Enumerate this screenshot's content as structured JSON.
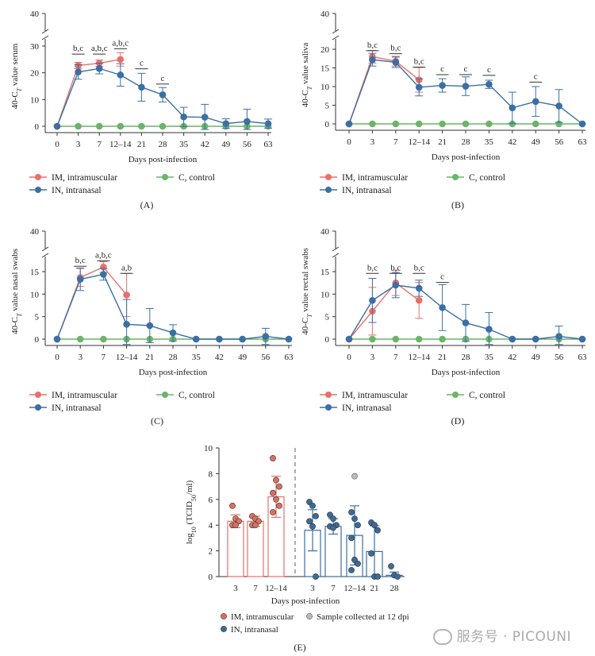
{
  "chart_data": [
    {
      "id": "A",
      "panel_label": "(A)",
      "type": "line",
      "ylabel": "40-CT value serum",
      "xlabel": "Days post-infection",
      "categories": [
        "0",
        "3",
        "7",
        "12–14",
        "21",
        "28",
        "35",
        "42",
        "49",
        "56",
        "63"
      ],
      "yticks_lower": [
        0,
        10,
        20,
        30
      ],
      "ytick_top": 40,
      "ylim_lower": [
        0,
        31
      ],
      "series": [
        {
          "name": "IM, intramuscular",
          "color": "#e8706a",
          "values": [
            0,
            22.7,
            23.6,
            25,
            null,
            null,
            null,
            null,
            null,
            null,
            null
          ],
          "errors": [
            0,
            1.2,
            1.2,
            2.5,
            null,
            null,
            null,
            null,
            null,
            null,
            null
          ]
        },
        {
          "name": "IN, intranasal",
          "color": "#3b6fa5",
          "values": [
            0,
            20.3,
            21.6,
            19.2,
            14.6,
            11.8,
            3.5,
            3.4,
            1.0,
            1.8,
            1.0
          ],
          "errors": [
            0,
            2.7,
            2.0,
            4.2,
            5.2,
            2.7,
            3.6,
            4.8,
            1.8,
            4.6,
            1.7
          ]
        },
        {
          "name": "C, control",
          "color": "#6cb46a",
          "values": [
            0,
            0,
            0,
            0,
            0,
            0,
            0,
            0,
            0,
            0,
            0
          ],
          "errors": [
            0,
            0,
            0,
            0,
            0,
            0,
            0,
            0,
            0,
            0,
            0
          ]
        }
      ],
      "annotations": [
        {
          "index": 1,
          "text": "b,c",
          "y": 27
        },
        {
          "index": 2,
          "text": "a,b,c",
          "y": 27
        },
        {
          "index": 3,
          "text": "a,b,c",
          "y": 29
        },
        {
          "index": 4,
          "text": "c",
          "y": 21.5
        },
        {
          "index": 5,
          "text": "c",
          "y": 15.8
        }
      ],
      "legend": [
        "IM, intramuscular",
        "C, control",
        "IN, intranasal"
      ]
    },
    {
      "id": "B",
      "panel_label": "(B)",
      "type": "line",
      "ylabel": "40-CT value saliva",
      "xlabel": "Days post-infection",
      "categories": [
        "0",
        "3",
        "7",
        "12–14",
        "21",
        "28",
        "35",
        "42",
        "49",
        "56",
        "63"
      ],
      "yticks_lower": [
        0,
        5,
        10,
        15,
        20
      ],
      "ytick_top": 40,
      "ylim_lower": [
        0,
        22.5
      ],
      "series": [
        {
          "name": "IM, intramuscular",
          "color": "#e8706a",
          "values": [
            0,
            18.0,
            16.8,
            11.8,
            null,
            null,
            null,
            null,
            null,
            null,
            null
          ],
          "errors": [
            0,
            1.7,
            1.3,
            3.3,
            null,
            null,
            null,
            null,
            null,
            null,
            null
          ]
        },
        {
          "name": "IN, intranasal",
          "color": "#3b6fa5",
          "values": [
            0,
            17.2,
            16.5,
            9.8,
            10.3,
            10.1,
            10.6,
            4.3,
            6.0,
            4.8,
            0
          ],
          "errors": [
            0,
            1.7,
            1.4,
            2.3,
            1.8,
            2.5,
            1.1,
            4.2,
            4.0,
            4.4,
            0
          ]
        },
        {
          "name": "C, control",
          "color": "#6cb46a",
          "values": [
            0,
            0,
            0,
            0,
            0,
            0,
            0,
            0,
            0,
            0,
            0
          ],
          "errors": [
            0,
            0,
            0,
            0,
            0,
            0,
            0,
            0,
            0,
            0,
            0
          ]
        }
      ],
      "annotations": [
        {
          "index": 1,
          "text": "b,c",
          "y": 19.6
        },
        {
          "index": 2,
          "text": "b,c",
          "y": 18.8
        },
        {
          "index": 3,
          "text": "b,c",
          "y": 15.2
        },
        {
          "index": 4,
          "text": "c",
          "y": 13.2
        },
        {
          "index": 5,
          "text": "c",
          "y": 13.2
        },
        {
          "index": 6,
          "text": "c",
          "y": 13.0
        },
        {
          "index": 8,
          "text": "c",
          "y": 11.2
        }
      ],
      "legend": [
        "IM, intramuscular",
        "C, control",
        "IN, intranasal"
      ]
    },
    {
      "id": "C",
      "panel_label": "(C)",
      "type": "line",
      "ylabel": "40-CT value nasal swabs",
      "xlabel": "Days post-infection",
      "categories": [
        "0",
        "3",
        "7",
        "12–14",
        "21",
        "28",
        "35",
        "42",
        "49",
        "56",
        "63"
      ],
      "yticks_lower": [
        0,
        5,
        10,
        15
      ],
      "ytick_top": 40,
      "ylim_lower": [
        0,
        18.8
      ],
      "series": [
        {
          "name": "IM, intramuscular",
          "color": "#e8706a",
          "values": [
            0,
            13.7,
            16.0,
            9.8,
            null,
            null,
            null,
            null,
            null,
            null,
            null
          ],
          "errors": [
            0,
            2.0,
            1.2,
            4.8,
            null,
            null,
            null,
            null,
            null,
            null,
            null
          ]
        },
        {
          "name": "IN, intranasal",
          "color": "#3b6fa5",
          "values": [
            0,
            13.3,
            14.4,
            3.3,
            3.0,
            1.4,
            0,
            0,
            0,
            0.6,
            0
          ],
          "errors": [
            0,
            2.5,
            1.3,
            5.5,
            3.8,
            1.8,
            0,
            0,
            0,
            1.8,
            0
          ]
        },
        {
          "name": "C, control",
          "color": "#6cb46a",
          "values": [
            0,
            0,
            0,
            0,
            0,
            0,
            0,
            0,
            0,
            0,
            0
          ],
          "errors": [
            0,
            0,
            0,
            0,
            0,
            0,
            0,
            0,
            0,
            0,
            0
          ]
        }
      ],
      "annotations": [
        {
          "index": 1,
          "text": "b,c",
          "y": 16.2
        },
        {
          "index": 2,
          "text": "a,b,c",
          "y": 17.4
        },
        {
          "index": 3,
          "text": "a,b",
          "y": 14.6
        }
      ],
      "legend": [
        "IM, intramuscular",
        "C, control",
        "IN, intranasal"
      ]
    },
    {
      "id": "D",
      "panel_label": "(D)",
      "type": "line",
      "ylabel": "40-CT value rectal swabs",
      "xlabel": "Days post-infection",
      "categories": [
        "0",
        "3",
        "7",
        "12–14",
        "21",
        "28",
        "35",
        "42",
        "49",
        "56",
        "63"
      ],
      "yticks_lower": [
        0,
        5,
        10,
        15
      ],
      "ytick_top": 40,
      "ylim_lower": [
        0,
        18.8
      ],
      "series": [
        {
          "name": "IM, intramuscular",
          "color": "#e8706a",
          "values": [
            0,
            6.2,
            12.5,
            8.6,
            null,
            null,
            null,
            null,
            null,
            null,
            null
          ],
          "errors": [
            0,
            5.3,
            2.8,
            4.0,
            null,
            null,
            null,
            null,
            null,
            null,
            null
          ]
        },
        {
          "name": "IN, intranasal",
          "color": "#3b6fa5",
          "values": [
            0,
            8.6,
            12.0,
            11.3,
            7.0,
            3.6,
            2.2,
            0,
            0,
            0.6,
            0
          ],
          "errors": [
            0,
            4.9,
            2.8,
            1.8,
            5.1,
            4.1,
            3.7,
            0,
            0,
            2.3,
            0
          ]
        },
        {
          "name": "C, control",
          "color": "#6cb46a",
          "values": [
            0,
            0,
            0,
            0,
            0,
            0,
            0,
            0,
            0,
            0,
            0
          ],
          "errors": [
            0,
            0,
            0,
            0,
            0,
            0,
            0,
            0,
            0,
            0,
            0
          ]
        }
      ],
      "annotations": [
        {
          "index": 1,
          "text": "b,c",
          "y": 14.6
        },
        {
          "index": 2,
          "text": "b,c",
          "y": 14.6
        },
        {
          "index": 3,
          "text": "b,c",
          "y": 14.6
        },
        {
          "index": 4,
          "text": "c",
          "y": 12.6
        }
      ],
      "legend": [
        "IM, intramuscular",
        "C, control",
        "IN, intranasal"
      ]
    },
    {
      "id": "E",
      "panel_label": "(E)",
      "type": "bar",
      "ylabel": "log10 (TCID50/ml)",
      "xlabel": "Days post-infection",
      "ylim": [
        0,
        10
      ],
      "yticks": [
        0,
        2,
        4,
        6,
        8,
        10
      ],
      "im_group": {
        "name": "IM, intramuscular",
        "color": "#e8706a",
        "dot": "#d9705e",
        "categories": [
          "3",
          "7",
          "12–14"
        ],
        "means": [
          4.3,
          4.3,
          6.2
        ],
        "sd": [
          0.5,
          0.4,
          1.6
        ],
        "points": [
          [
            5.5,
            4.5,
            4.3,
            4.0,
            4.0
          ],
          [
            4.7,
            4.5,
            4.3,
            4.0,
            4.0
          ],
          [
            9.2,
            7.5,
            7.0,
            6.5,
            6.0,
            5.5,
            5.0
          ]
        ]
      },
      "in_group": {
        "name": "IN, intranasal",
        "color": "#3b6fa5",
        "dot": "#3b6b99",
        "categories": [
          "3",
          "7",
          "12–14",
          "21",
          "28"
        ],
        "means": [
          3.6,
          3.9,
          3.2,
          1.95,
          0.1
        ],
        "sd": [
          1.6,
          0.6,
          2.3,
          2.0,
          0.25
        ],
        "points": [
          [
            5.8,
            5.5,
            4.7,
            4.3,
            3.9,
            0
          ],
          [
            4.8,
            4.5,
            4.0,
            3.9,
            3.8
          ],
          [
            5.0,
            4.5,
            4.0,
            3.0,
            1.3,
            1.0,
            0.5
          ],
          [
            4.2,
            4.0,
            3.6,
            1.8,
            0,
            0
          ],
          [
            0.8,
            0.1,
            0
          ]
        ],
        "grey_points": [
          {
            "index": 2,
            "value": 7.8
          }
        ]
      },
      "legend": [
        "IM, intramuscular",
        "Sample collected at 12 dpi",
        "IN, intranasal"
      ],
      "grey_label": "Sample collected at 12 dpi"
    }
  ],
  "watermark": "服务号 · PICOUNI"
}
